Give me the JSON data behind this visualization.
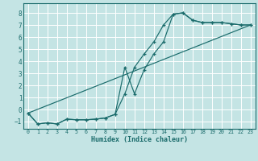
{
  "xlabel": "Humidex (Indice chaleur)",
  "bg_color": "#c4e4e4",
  "grid_color": "#ffffff",
  "line_color": "#1a6b6b",
  "xlim": [
    -0.5,
    23.5
  ],
  "ylim": [
    -1.6,
    8.8
  ],
  "xticks": [
    0,
    1,
    2,
    3,
    4,
    5,
    6,
    7,
    8,
    9,
    10,
    11,
    12,
    13,
    14,
    15,
    16,
    17,
    18,
    19,
    20,
    21,
    22,
    23
  ],
  "yticks": [
    -1,
    0,
    1,
    2,
    3,
    4,
    5,
    6,
    7,
    8
  ],
  "line1_x": [
    0,
    1,
    2,
    3,
    4,
    5,
    6,
    7,
    8,
    9,
    10,
    11,
    12,
    13,
    14,
    15,
    16,
    17,
    18,
    19,
    20,
    21,
    22,
    23
  ],
  "line1_y": [
    -0.3,
    -1.2,
    -1.1,
    -1.2,
    -0.8,
    -0.85,
    -0.85,
    -0.8,
    -0.7,
    -0.4,
    3.5,
    1.3,
    3.3,
    4.6,
    5.6,
    7.9,
    8.0,
    7.4,
    7.2,
    7.2,
    7.2,
    7.1,
    7.0,
    7.0
  ],
  "line2_x": [
    0,
    1,
    2,
    3,
    4,
    5,
    6,
    7,
    8,
    9,
    10,
    11,
    12,
    13,
    14,
    15,
    16,
    17,
    18,
    19,
    20,
    21,
    22,
    23
  ],
  "line2_y": [
    -0.3,
    -1.2,
    -1.1,
    -1.2,
    -0.8,
    -0.85,
    -0.85,
    -0.8,
    -0.7,
    -0.4,
    1.3,
    3.5,
    4.6,
    5.6,
    7.0,
    7.9,
    8.0,
    7.4,
    7.2,
    7.2,
    7.2,
    7.1,
    7.0,
    7.0
  ],
  "line3_x": [
    0,
    23
  ],
  "line3_y": [
    -0.3,
    7.0
  ]
}
